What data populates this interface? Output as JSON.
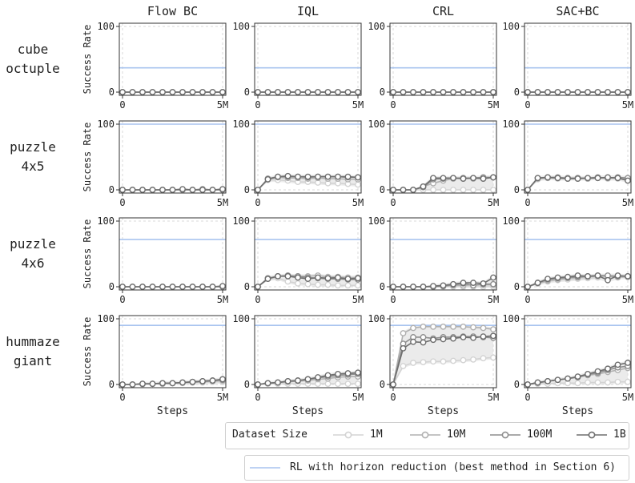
{
  "colors": {
    "1M": "#d3d3d3",
    "10M": "#b0b0b0",
    "100M": "#8e8e8e",
    "1B": "#6e6e6e",
    "reference": "#a9c4ef",
    "band": "#dedede",
    "axis": "#333333",
    "grid": "#d8d8d8"
  },
  "legend": {
    "title": "Dataset Size",
    "items": [
      "1M",
      "10M",
      "100M",
      "1B"
    ],
    "reference_label": "RL with horizon reduction (best method in Section 6)"
  },
  "chart_data": {
    "type": "line",
    "columns": [
      "Flow BC",
      "IQL",
      "CRL",
      "SAC+BC"
    ],
    "rows": [
      {
        "name": "cube octuple",
        "label_lines": [
          "cube",
          "octuple"
        ],
        "reference": 37
      },
      {
        "name": "puzzle 4x5",
        "label_lines": [
          "puzzle",
          "4x5"
        ],
        "reference": 100
      },
      {
        "name": "puzzle 4x6",
        "label_lines": [
          "puzzle",
          "4x6"
        ],
        "reference": 72
      },
      {
        "name": "hummaze giant",
        "label_lines": [
          "hummaze",
          "giant"
        ],
        "reference": 90
      }
    ],
    "ylabel": "Success Rate",
    "xlabel": "Steps",
    "ylim": [
      0,
      100
    ],
    "yticks": [
      0,
      100
    ],
    "xlim": [
      0,
      5
    ],
    "xtick_values": [
      0,
      5
    ],
    "xtick_labels": [
      "0",
      "5M"
    ],
    "x": [
      0,
      0.5,
      1,
      1.5,
      2,
      2.5,
      3,
      3.5,
      4,
      4.5,
      5
    ],
    "series_names": [
      "1M",
      "10M",
      "100M",
      "1B"
    ],
    "panels": [
      [
        {
          "1M": [
            0,
            0,
            0,
            0,
            0,
            0,
            0,
            0,
            0,
            0,
            0
          ],
          "10M": [
            0,
            0,
            0,
            0,
            0,
            0,
            0,
            0,
            0,
            0,
            0
          ],
          "100M": [
            0,
            0,
            0,
            0,
            0,
            0,
            0,
            0,
            0,
            0,
            0
          ],
          "1B": [
            0,
            0,
            0,
            0,
            0,
            0,
            0,
            0,
            0,
            0,
            0
          ]
        },
        {
          "1M": [
            0,
            0,
            0,
            0,
            0,
            0,
            0,
            0,
            0,
            0,
            0
          ],
          "10M": [
            0,
            0,
            0,
            0,
            0,
            0,
            0,
            0,
            0,
            0,
            0
          ],
          "100M": [
            0,
            0,
            0,
            0,
            0,
            0,
            0,
            0,
            0,
            0,
            0
          ],
          "1B": [
            0,
            0,
            0,
            0,
            0,
            0,
            0,
            0,
            0,
            0,
            0
          ]
        },
        {
          "1M": [
            0,
            0,
            0,
            0,
            0,
            0,
            0,
            0,
            0,
            0,
            0
          ],
          "10M": [
            0,
            0,
            0,
            0,
            0,
            0,
            0,
            0,
            0,
            0,
            0
          ],
          "100M": [
            0,
            0,
            0,
            0,
            0,
            0,
            0,
            0,
            0,
            0,
            0
          ],
          "1B": [
            0,
            0,
            0,
            0,
            0,
            0,
            0,
            0,
            0,
            0,
            0
          ]
        },
        {
          "1M": [
            0,
            0,
            0,
            0,
            0,
            0,
            0,
            0,
            0,
            0,
            0
          ],
          "10M": [
            0,
            0,
            0,
            0,
            0,
            0,
            0,
            0,
            0,
            0,
            0
          ],
          "100M": [
            0,
            0,
            0,
            0,
            0,
            0,
            0,
            0,
            0,
            0,
            0
          ],
          "1B": [
            0,
            0,
            0,
            0,
            0,
            0,
            0,
            0,
            0,
            0,
            0
          ]
        }
      ],
      [
        {
          "1M": [
            0,
            0,
            0,
            0,
            0,
            0,
            0,
            0,
            0,
            0,
            0
          ],
          "10M": [
            0,
            0,
            0,
            0,
            0,
            0,
            0,
            0,
            0,
            0,
            0
          ],
          "100M": [
            0,
            0,
            0,
            0,
            0,
            0,
            0,
            0,
            1,
            0,
            0
          ],
          "1B": [
            0,
            0,
            0,
            0,
            0,
            0,
            1,
            0,
            0,
            0,
            1
          ]
        },
        {
          "1M": [
            0,
            15,
            15,
            14,
            12,
            12,
            11,
            10,
            10,
            9,
            8
          ],
          "10M": [
            0,
            16,
            19,
            18,
            18,
            17,
            18,
            17,
            17,
            16,
            16
          ],
          "100M": [
            0,
            17,
            20,
            20,
            20,
            19,
            20,
            20,
            20,
            19,
            19
          ],
          "1B": [
            0,
            16,
            20,
            21,
            20,
            20,
            20,
            20,
            20,
            20,
            19
          ]
        },
        {
          "1M": [
            0,
            0,
            0,
            0,
            0,
            0,
            0,
            0,
            0,
            0,
            0
          ],
          "10M": [
            0,
            0,
            0,
            5,
            10,
            14,
            17,
            18,
            17,
            18,
            19
          ],
          "100M": [
            0,
            0,
            0,
            4,
            16,
            17,
            18,
            18,
            18,
            19,
            19
          ],
          "1B": [
            0,
            0,
            0,
            5,
            18,
            18,
            18,
            17,
            18,
            17,
            19
          ]
        },
        {
          "1M": [
            0,
            16,
            18,
            17,
            17,
            17,
            17,
            18,
            17,
            17,
            15
          ],
          "10M": [
            0,
            17,
            18,
            18,
            18,
            18,
            17,
            18,
            18,
            18,
            17
          ],
          "100M": [
            0,
            18,
            19,
            19,
            18,
            18,
            18,
            19,
            18,
            19,
            18
          ],
          "1B": [
            0,
            18,
            19,
            18,
            17,
            17,
            18,
            18,
            19,
            18,
            14
          ]
        }
      ],
      [
        {
          "1M": [
            0,
            0,
            0,
            0,
            0,
            0,
            0,
            0,
            0,
            0,
            0
          ],
          "10M": [
            0,
            0,
            0,
            0,
            0,
            0,
            0,
            0,
            0,
            0,
            0
          ],
          "100M": [
            0,
            0,
            0,
            0,
            0,
            0,
            0,
            0,
            0,
            0,
            0
          ],
          "1B": [
            0,
            0,
            0,
            0,
            0,
            0,
            0,
            0,
            0,
            0,
            1
          ]
        },
        {
          "1M": [
            0,
            12,
            13,
            8,
            5,
            4,
            3,
            3,
            2,
            2,
            2
          ],
          "10M": [
            0,
            13,
            16,
            17,
            16,
            16,
            17,
            15,
            15,
            14,
            14
          ],
          "100M": [
            0,
            13,
            16,
            17,
            16,
            14,
            13,
            12,
            12,
            11,
            11
          ],
          "1B": [
            0,
            12,
            16,
            16,
            14,
            12,
            14,
            13,
            14,
            12,
            13
          ]
        },
        {
          "1M": [
            0,
            0,
            0,
            0,
            0,
            0,
            0,
            0,
            0,
            0,
            0
          ],
          "10M": [
            0,
            0,
            0,
            0,
            0,
            1,
            2,
            2,
            3,
            3,
            3
          ],
          "100M": [
            0,
            0,
            0,
            0,
            0,
            1,
            3,
            5,
            2,
            4,
            4
          ],
          "1B": [
            0,
            0,
            0,
            0,
            1,
            2,
            4,
            6,
            6,
            5,
            14
          ]
        },
        {
          "1M": [
            0,
            5,
            8,
            10,
            11,
            12,
            13,
            14,
            14,
            14,
            15
          ],
          "10M": [
            0,
            5,
            9,
            11,
            13,
            14,
            15,
            16,
            16,
            15,
            15
          ],
          "100M": [
            0,
            6,
            11,
            13,
            14,
            15,
            16,
            17,
            17,
            16,
            16
          ],
          "1B": [
            0,
            6,
            12,
            14,
            15,
            17,
            16,
            17,
            10,
            17,
            16
          ]
        }
      ],
      [
        {
          "1M": [
            0,
            0,
            0,
            1,
            1,
            2,
            2,
            3,
            3,
            4,
            4
          ],
          "10M": [
            0,
            0,
            1,
            1,
            1,
            2,
            3,
            3,
            4,
            5,
            6
          ],
          "100M": [
            0,
            0,
            1,
            1,
            2,
            2,
            3,
            4,
            5,
            6,
            7
          ],
          "1B": [
            0,
            0,
            1,
            1,
            2,
            2,
            3,
            4,
            5,
            6,
            8
          ]
        },
        {
          "1M": [
            0,
            1,
            1,
            1,
            1,
            1,
            1,
            1,
            1,
            1,
            1
          ],
          "10M": [
            0,
            2,
            3,
            4,
            5,
            6,
            8,
            9,
            11,
            12,
            12
          ],
          "100M": [
            0,
            2,
            3,
            5,
            6,
            8,
            10,
            12,
            14,
            15,
            16
          ],
          "1B": [
            0,
            2,
            3,
            5,
            6,
            8,
            11,
            14,
            16,
            17,
            18
          ]
        },
        {
          "1M": [
            0,
            28,
            33,
            34,
            35,
            35,
            36,
            37,
            38,
            40,
            41
          ],
          "10M": [
            0,
            78,
            86,
            88,
            88,
            88,
            88,
            88,
            87,
            86,
            84
          ],
          "100M": [
            0,
            62,
            72,
            72,
            70,
            72,
            72,
            73,
            73,
            72,
            71
          ],
          "1B": [
            0,
            55,
            65,
            64,
            68,
            69,
            70,
            72,
            71,
            73,
            74
          ]
        },
        {
          "1M": [
            0,
            1,
            1,
            2,
            2,
            2,
            3,
            3,
            3,
            4,
            4
          ],
          "10M": [
            0,
            2,
            5,
            7,
            9,
            11,
            14,
            16,
            19,
            22,
            25
          ],
          "100M": [
            0,
            3,
            5,
            7,
            9,
            11,
            15,
            18,
            22,
            26,
            28
          ],
          "1B": [
            0,
            3,
            5,
            7,
            9,
            12,
            16,
            20,
            24,
            30,
            33
          ]
        }
      ]
    ]
  }
}
